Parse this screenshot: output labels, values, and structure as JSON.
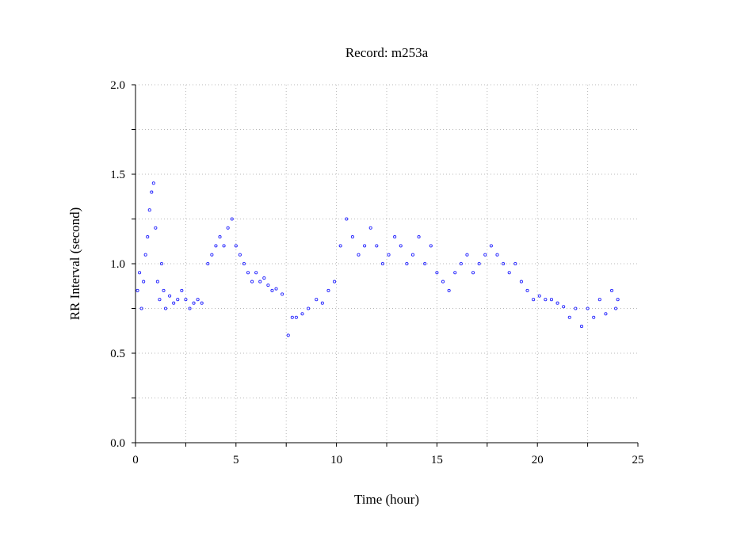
{
  "chart_data": {
    "type": "scatter",
    "title": "Record:  m253a",
    "xlabel": "Time (hour)",
    "ylabel": "RR Interval (second)",
    "xlim": [
      0,
      25
    ],
    "ylim": [
      0,
      2
    ],
    "x_ticks": [
      "0",
      "5",
      "10",
      "15",
      "20",
      "25"
    ],
    "y_ticks": [
      "0.0",
      "0.5",
      "1.0",
      "1.5",
      "2.0"
    ],
    "grid": true,
    "marker_color": "#2222ff",
    "series": [
      {
        "points": [
          [
            0.1,
            0.85
          ],
          [
            0.2,
            0.95
          ],
          [
            0.3,
            0.75
          ],
          [
            0.4,
            0.9
          ],
          [
            0.5,
            1.05
          ],
          [
            0.6,
            1.15
          ],
          [
            0.7,
            1.3
          ],
          [
            0.8,
            1.4
          ],
          [
            0.9,
            1.45
          ],
          [
            1.0,
            1.2
          ],
          [
            1.1,
            0.9
          ],
          [
            1.2,
            0.8
          ],
          [
            1.3,
            1.0
          ],
          [
            1.4,
            0.85
          ],
          [
            1.5,
            0.75
          ],
          [
            1.7,
            0.82
          ],
          [
            1.9,
            0.78
          ],
          [
            2.1,
            0.8
          ],
          [
            2.3,
            0.85
          ],
          [
            2.5,
            0.8
          ],
          [
            2.7,
            0.75
          ],
          [
            2.9,
            0.78
          ],
          [
            3.1,
            0.8
          ],
          [
            3.3,
            0.78
          ],
          [
            3.6,
            1.0
          ],
          [
            3.8,
            1.05
          ],
          [
            4.0,
            1.1
          ],
          [
            4.2,
            1.15
          ],
          [
            4.4,
            1.1
          ],
          [
            4.6,
            1.2
          ],
          [
            4.8,
            1.25
          ],
          [
            5.0,
            1.1
          ],
          [
            5.2,
            1.05
          ],
          [
            5.4,
            1.0
          ],
          [
            5.6,
            0.95
          ],
          [
            5.8,
            0.9
          ],
          [
            6.0,
            0.95
          ],
          [
            6.2,
            0.9
          ],
          [
            6.4,
            0.92
          ],
          [
            6.6,
            0.88
          ],
          [
            6.8,
            0.85
          ],
          [
            7.0,
            0.86
          ],
          [
            7.3,
            0.83
          ],
          [
            7.6,
            0.6
          ],
          [
            7.8,
            0.7
          ],
          [
            8.0,
            0.7
          ],
          [
            8.3,
            0.72
          ],
          [
            8.6,
            0.75
          ],
          [
            9.0,
            0.8
          ],
          [
            9.3,
            0.78
          ],
          [
            9.6,
            0.85
          ],
          [
            9.9,
            0.9
          ],
          [
            10.2,
            1.1
          ],
          [
            10.5,
            1.25
          ],
          [
            10.8,
            1.15
          ],
          [
            11.1,
            1.05
          ],
          [
            11.4,
            1.1
          ],
          [
            11.7,
            1.2
          ],
          [
            12.0,
            1.1
          ],
          [
            12.3,
            1.0
          ],
          [
            12.6,
            1.05
          ],
          [
            12.9,
            1.15
          ],
          [
            13.2,
            1.1
          ],
          [
            13.5,
            1.0
          ],
          [
            13.8,
            1.05
          ],
          [
            14.1,
            1.15
          ],
          [
            14.4,
            1.0
          ],
          [
            14.7,
            1.1
          ],
          [
            15.0,
            0.95
          ],
          [
            15.3,
            0.9
          ],
          [
            15.6,
            0.85
          ],
          [
            15.9,
            0.95
          ],
          [
            16.2,
            1.0
          ],
          [
            16.5,
            1.05
          ],
          [
            16.8,
            0.95
          ],
          [
            17.1,
            1.0
          ],
          [
            17.4,
            1.05
          ],
          [
            17.7,
            1.1
          ],
          [
            18.0,
            1.05
          ],
          [
            18.3,
            1.0
          ],
          [
            18.6,
            0.95
          ],
          [
            18.9,
            1.0
          ],
          [
            19.2,
            0.9
          ],
          [
            19.5,
            0.85
          ],
          [
            19.8,
            0.8
          ],
          [
            20.1,
            0.82
          ],
          [
            20.4,
            0.8
          ],
          [
            20.7,
            0.8
          ],
          [
            21.0,
            0.78
          ],
          [
            21.3,
            0.76
          ],
          [
            21.6,
            0.7
          ],
          [
            21.9,
            0.75
          ],
          [
            22.2,
            0.65
          ],
          [
            22.5,
            0.75
          ],
          [
            22.8,
            0.7
          ],
          [
            23.1,
            0.8
          ],
          [
            23.4,
            0.72
          ],
          [
            23.7,
            0.85
          ],
          [
            23.9,
            0.75
          ],
          [
            24.0,
            0.8
          ]
        ]
      }
    ]
  }
}
